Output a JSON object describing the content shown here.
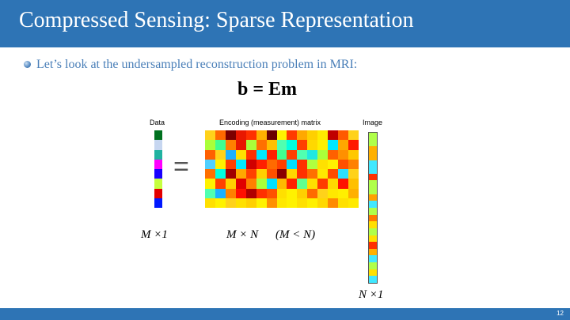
{
  "slide": {
    "title": "Compressed Sensing: Sparse Representation",
    "bullet": "Let’s look at the undersampled reconstruction problem in MRI:",
    "equation": "b = Em",
    "page_number": "12"
  },
  "figure": {
    "data_label": "Data",
    "matrix_label": "Encoding (measurement) matrix",
    "image_label": "Image",
    "equals_sign": "=",
    "data_dim": "M ×1",
    "matrix_dim": "M × N",
    "matrix_condition": "(M < N)",
    "image_dim": "N ×1",
    "data_colors": [
      "#00711f",
      "#c6d6f0",
      "#20b2a0",
      "#ff00ff",
      "#1a00ff",
      "#c6ff40",
      "#e30000",
      "#0018ff"
    ],
    "matrix_cols": 15,
    "matrix_colors": [
      "#ffd21a",
      "#ff6a00",
      "#7a0000",
      "#e81800",
      "#ff3000",
      "#ffb000",
      "#6a0000",
      "#fff200",
      "#ff3a00",
      "#ffa800",
      "#ffd000",
      "#ffec00",
      "#c00000",
      "#ff5a00",
      "#ffd21a",
      "#aaff3a",
      "#40ff90",
      "#ff8000",
      "#e81800",
      "#aaff3a",
      "#ff7000",
      "#ffc000",
      "#50ffb0",
      "#00ffe0",
      "#ff4000",
      "#ffd800",
      "#fff000",
      "#00e8ff",
      "#ffa800",
      "#ff1a00",
      "#ff6000",
      "#ffd21a",
      "#1ab0ff",
      "#ffe000",
      "#ff3000",
      "#00e8ff",
      "#ff2000",
      "#40ff90",
      "#ff4000",
      "#50ffb0",
      "#20e8e0",
      "#aaff3a",
      "#ff6000",
      "#ff9000",
      "#ffc800",
      "#50d0ff",
      "#fff200",
      "#ff4000",
      "#00e8ff",
      "#d00000",
      "#ff2000",
      "#ff6a00",
      "#ff4000",
      "#00e0ff",
      "#ff3000",
      "#b0ff40",
      "#ffe000",
      "#fff200",
      "#ff5000",
      "#ff8000",
      "#ff7000",
      "#00ffe0",
      "#a00000",
      "#ffa800",
      "#ff4000",
      "#ffd000",
      "#ff5000",
      "#8a0000",
      "#ffd800",
      "#ff3000",
      "#ff7000",
      "#ffe800",
      "#ff4a00",
      "#2ae0ff",
      "#ffd21a",
      "#fff200",
      "#ff4000",
      "#ffd000",
      "#e00000",
      "#ff8000",
      "#aaff3a",
      "#00e0ff",
      "#ffb800",
      "#ff2000",
      "#60ff90",
      "#ffe000",
      "#ff3a00",
      "#ffd800",
      "#ff1000",
      "#ffc000",
      "#50ffb0",
      "#1ab0ff",
      "#ff8000",
      "#ff1000",
      "#b00000",
      "#ff3000",
      "#ff5000",
      "#ffe000",
      "#fff200",
      "#ffd000",
      "#ff6a00",
      "#ffd21a",
      "#ffe800",
      "#fff000",
      "#ffb000",
      "#ffe000",
      "#fff200",
      "#ffd21a",
      "#ffe000",
      "#ffd000",
      "#fff200",
      "#ff9000",
      "#ffe800",
      "#fff200",
      "#ffe000",
      "#fff000",
      "#ffd800",
      "#ff8a00",
      "#ffe000",
      "#ffea00"
    ],
    "image_colors": [
      "#b0ff4a",
      "#b0ff4a",
      "#ffb000",
      "#ffb000",
      "#40e8ff",
      "#40e8ff",
      "#ff3000",
      "#b0ff4a",
      "#b0ff4a",
      "#ffa000",
      "#40e8ff",
      "#b0ff4a",
      "#ff7a00",
      "#ffe000",
      "#b0ff4a",
      "#ffe000",
      "#ff3000",
      "#ffb000",
      "#40e8ff",
      "#b0ff4a",
      "#ffe000",
      "#40e8ff"
    ]
  }
}
